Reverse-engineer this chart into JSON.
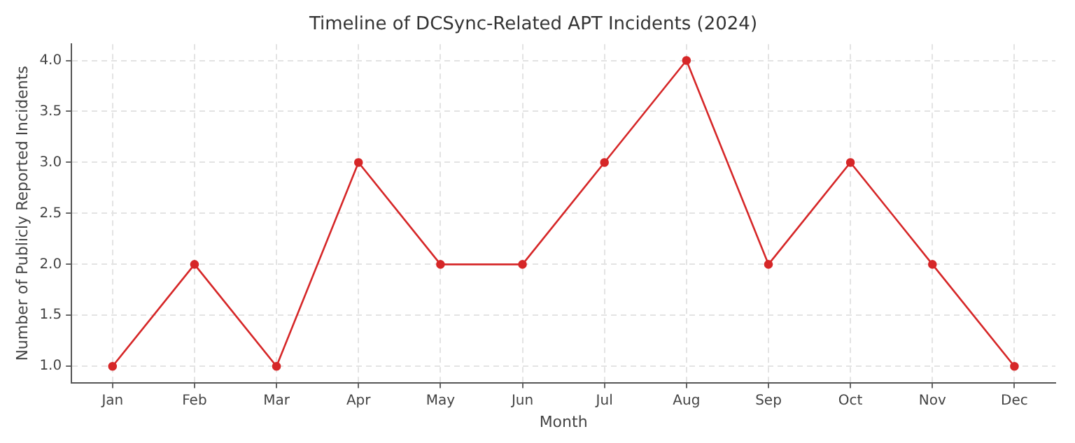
{
  "chart_data": {
    "type": "line",
    "title": "Timeline of DCSync-Related APT Incidents (2024)",
    "xlabel": "Month",
    "ylabel": "Number of Publicly Reported Incidents",
    "categories": [
      "Jan",
      "Feb",
      "Mar",
      "Apr",
      "May",
      "Jun",
      "Jul",
      "Aug",
      "Sep",
      "Oct",
      "Nov",
      "Dec"
    ],
    "series": [
      {
        "color": "#d62728",
        "values": [
          1,
          2,
          1,
          3,
          2,
          2,
          3,
          4,
          2,
          3,
          2,
          1
        ]
      }
    ],
    "ylim": [
      0.84,
      4.16
    ],
    "yticks": [
      {
        "value": 1,
        "label": "1.0"
      },
      1.5,
      {
        "value": 2,
        "label": "2.0"
      },
      2.5,
      {
        "value": 3,
        "label": "3.0"
      },
      3.5,
      {
        "value": 4,
        "label": "4.0"
      }
    ],
    "grid": true,
    "marker": "circle",
    "line_style": "solid",
    "legend": false
  }
}
